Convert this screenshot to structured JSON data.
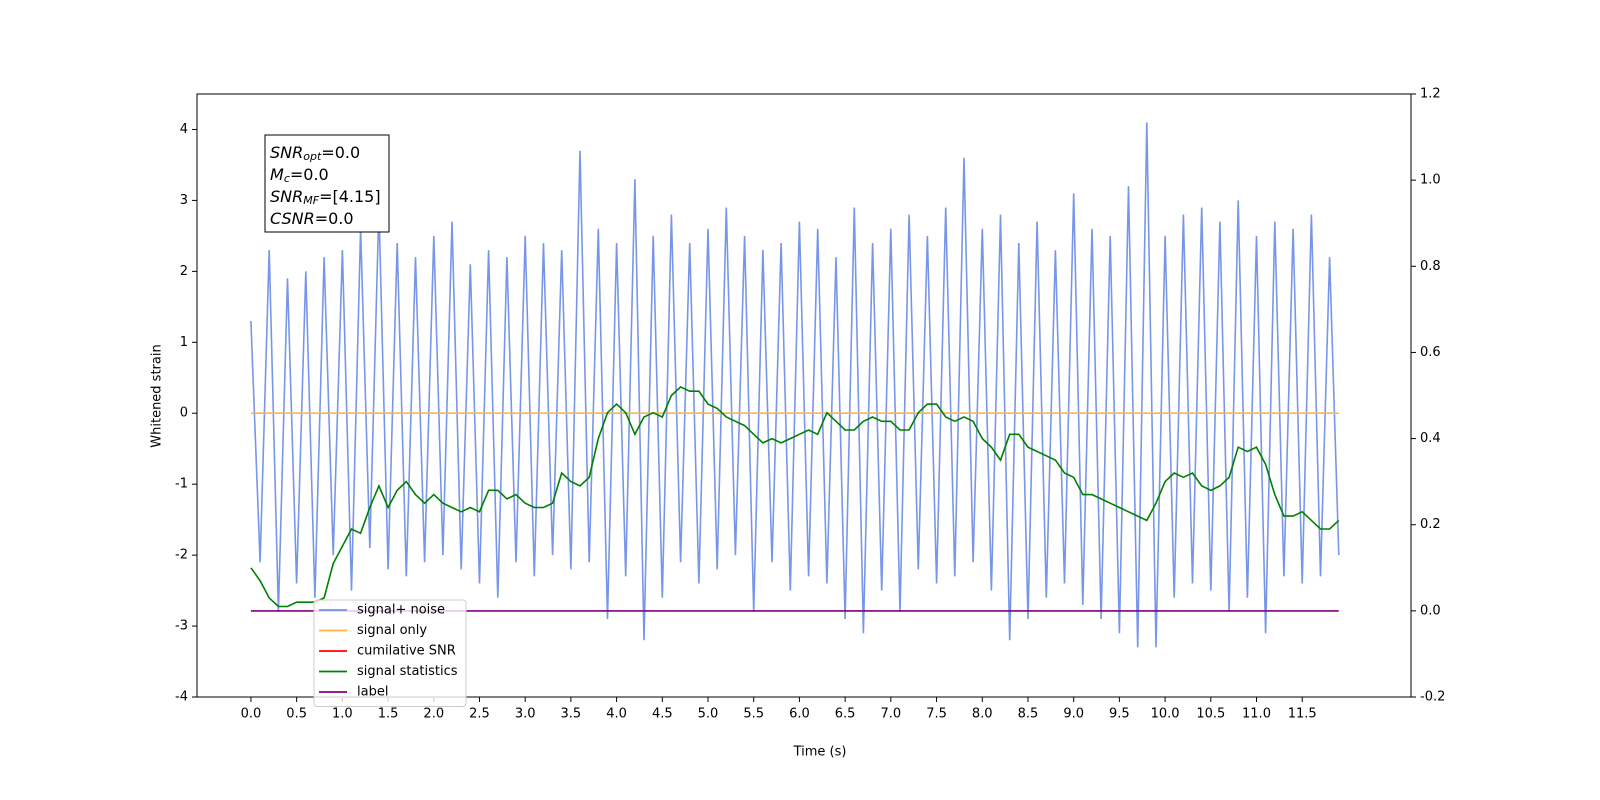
{
  "chart_data": {
    "type": "line",
    "xlabel": "Time (s)",
    "ylabel": "Whitened strain",
    "annotation": [
      {
        "text": "SNR",
        "sub": "opt",
        "rest": "=0.0"
      },
      {
        "text": "M",
        "sub": "c",
        "rest": "=0.0"
      },
      {
        "text": "SNR",
        "sub": "MF",
        "rest": "=[4.15]"
      },
      {
        "text": "CSNR",
        "rest": "=0.0"
      }
    ],
    "x": [
      0,
      0.1,
      0.2,
      0.3,
      0.4,
      0.5,
      0.6,
      0.7,
      0.8,
      0.9,
      1,
      1.1,
      1.2,
      1.3,
      1.4,
      1.5,
      1.6,
      1.7,
      1.8,
      1.9,
      2,
      2.1,
      2.2,
      2.3,
      2.4,
      2.5,
      2.6,
      2.7,
      2.8,
      2.9,
      3,
      3.1,
      3.2,
      3.3,
      3.4,
      3.5,
      3.6,
      3.7,
      3.8,
      3.9,
      4,
      4.1,
      4.2,
      4.3,
      4.4,
      4.5,
      4.6,
      4.7,
      4.8,
      4.9,
      5,
      5.1,
      5.2,
      5.3,
      5.4,
      5.5,
      5.6,
      5.7,
      5.8,
      5.9,
      6,
      6.1,
      6.2,
      6.3,
      6.4,
      6.5,
      6.6,
      6.7,
      6.8,
      6.9,
      7,
      7.1,
      7.2,
      7.3,
      7.4,
      7.5,
      7.6,
      7.7,
      7.8,
      7.9,
      8,
      8.1,
      8.2,
      8.3,
      8.4,
      8.5,
      8.6,
      8.7,
      8.8,
      8.9,
      9,
      9.1,
      9.2,
      9.3,
      9.4,
      9.5,
      9.6,
      9.7,
      9.8,
      9.9,
      10,
      10.1,
      10.2,
      10.3,
      10.4,
      10.5,
      10.6,
      10.7,
      10.8,
      10.9,
      11,
      11.1,
      11.2,
      11.3,
      11.4,
      11.5,
      11.6,
      11.7,
      11.8,
      11.9
    ],
    "series": [
      {
        "name": "signal+ noise",
        "color": "#7190e6",
        "values": [
          1.3,
          -2.1,
          2.3,
          -2.8,
          1.9,
          -2.4,
          2.0,
          -2.6,
          2.2,
          -2.0,
          2.3,
          -2.5,
          2.6,
          -1.9,
          2.9,
          -2.2,
          2.4,
          -2.3,
          2.2,
          -2.1,
          2.5,
          -2.0,
          2.7,
          -2.2,
          2.1,
          -2.4,
          2.3,
          -2.6,
          2.2,
          -2.1,
          2.5,
          -2.3,
          2.4,
          -2.0,
          2.3,
          -2.2,
          3.7,
          -2.1,
          2.6,
          -2.9,
          2.4,
          -2.3,
          3.3,
          -3.2,
          2.5,
          -2.6,
          2.8,
          -2.1,
          2.4,
          -2.4,
          2.6,
          -2.2,
          2.9,
          -2.0,
          2.5,
          -2.8,
          2.3,
          -2.1,
          2.4,
          -2.5,
          2.7,
          -2.3,
          2.6,
          -2.4,
          2.2,
          -2.9,
          2.9,
          -3.1,
          2.4,
          -2.5,
          2.6,
          -2.8,
          2.8,
          -2.2,
          2.5,
          -2.4,
          2.9,
          -2.3,
          3.6,
          -2.1,
          2.6,
          -2.5,
          2.8,
          -3.2,
          2.4,
          -2.9,
          2.7,
          -2.6,
          2.3,
          -2.4,
          3.1,
          -2.7,
          2.6,
          -2.9,
          2.5,
          -3.1,
          3.2,
          -3.3,
          4.1,
          -3.3,
          2.5,
          -2.6,
          2.8,
          -2.4,
          2.9,
          -2.5,
          2.7,
          -2.8,
          3.0,
          -2.6,
          2.5,
          -3.1,
          2.7,
          -2.3,
          2.6,
          -2.4,
          2.8,
          -2.3,
          2.2,
          -2.0
        ]
      },
      {
        "name": "signal only",
        "color": "#ffb347",
        "values": [
          0,
          0,
          0,
          0,
          0,
          0,
          0,
          0,
          0,
          0,
          0,
          0,
          0,
          0,
          0,
          0,
          0,
          0,
          0,
          0,
          0,
          0,
          0,
          0,
          0,
          0,
          0,
          0,
          0,
          0,
          0,
          0,
          0,
          0,
          0,
          0,
          0,
          0,
          0,
          0,
          0,
          0,
          0,
          0,
          0,
          0,
          0,
          0,
          0,
          0,
          0,
          0,
          0,
          0,
          0,
          0,
          0,
          0,
          0,
          0,
          0,
          0,
          0,
          0,
          0,
          0,
          0,
          0,
          0,
          0,
          0,
          0,
          0,
          0,
          0,
          0,
          0,
          0,
          0,
          0,
          0,
          0,
          0,
          0,
          0,
          0,
          0,
          0,
          0,
          0,
          0,
          0,
          0,
          0,
          0,
          0,
          0,
          0,
          0,
          0,
          0,
          0,
          0,
          0,
          0,
          0,
          0,
          0,
          0,
          0,
          0,
          0,
          0,
          0,
          0,
          0,
          0,
          0,
          0,
          0
        ]
      },
      {
        "name": "cumilative SNR",
        "color": "#ff0000"
      },
      {
        "name": "signal statistics",
        "color": "#008000",
        "axis": "y2",
        "values": [
          0.1,
          0.07,
          0.03,
          0.01,
          0.01,
          0.02,
          0.02,
          0.02,
          0.03,
          0.11,
          0.15,
          0.19,
          0.18,
          0.24,
          0.29,
          0.24,
          0.28,
          0.3,
          0.27,
          0.25,
          0.27,
          0.25,
          0.24,
          0.23,
          0.24,
          0.23,
          0.28,
          0.28,
          0.26,
          0.27,
          0.25,
          0.24,
          0.24,
          0.25,
          0.32,
          0.3,
          0.29,
          0.31,
          0.4,
          0.46,
          0.48,
          0.46,
          0.41,
          0.45,
          0.46,
          0.45,
          0.5,
          0.52,
          0.51,
          0.51,
          0.48,
          0.47,
          0.45,
          0.44,
          0.43,
          0.41,
          0.39,
          0.4,
          0.39,
          0.4,
          0.41,
          0.42,
          0.41,
          0.46,
          0.44,
          0.42,
          0.42,
          0.44,
          0.45,
          0.44,
          0.44,
          0.42,
          0.42,
          0.46,
          0.48,
          0.48,
          0.45,
          0.44,
          0.45,
          0.44,
          0.4,
          0.38,
          0.35,
          0.41,
          0.41,
          0.38,
          0.37,
          0.36,
          0.35,
          0.32,
          0.31,
          0.27,
          0.27,
          0.26,
          0.25,
          0.24,
          0.23,
          0.22,
          0.21,
          0.25,
          0.3,
          0.32,
          0.31,
          0.32,
          0.29,
          0.28,
          0.29,
          0.31,
          0.38,
          0.37,
          0.38,
          0.34,
          0.27,
          0.22,
          0.22,
          0.23,
          0.21,
          0.19,
          0.19,
          0.21
        ]
      },
      {
        "name": "label",
        "color": "#800080",
        "axis": "y2",
        "values": [
          0,
          0,
          0,
          0,
          0,
          0,
          0,
          0,
          0,
          0,
          0,
          0,
          0,
          0,
          0,
          0,
          0,
          0,
          0,
          0,
          0,
          0,
          0,
          0,
          0,
          0,
          0,
          0,
          0,
          0,
          0,
          0,
          0,
          0,
          0,
          0,
          0,
          0,
          0,
          0,
          0,
          0,
          0,
          0,
          0,
          0,
          0,
          0,
          0,
          0,
          0,
          0,
          0,
          0,
          0,
          0,
          0,
          0,
          0,
          0,
          0,
          0,
          0,
          0,
          0,
          0,
          0,
          0,
          0,
          0,
          0,
          0,
          0,
          0,
          0,
          0,
          0,
          0,
          0,
          0,
          0,
          0,
          0,
          0,
          0,
          0,
          0,
          0,
          0,
          0,
          0,
          0,
          0,
          0,
          0,
          0,
          0,
          0,
          0,
          0,
          0,
          0,
          0,
          0,
          0,
          0,
          0,
          0,
          0,
          0,
          0,
          0,
          0,
          0,
          0,
          0,
          0,
          0,
          0,
          0
        ]
      }
    ],
    "xlim": [
      -0.59,
      12.69
    ],
    "xticks": [
      {
        "value": 0,
        "label": "0.0"
      },
      0.5,
      {
        "value": 1,
        "label": "1.0"
      },
      1.5,
      {
        "value": 2,
        "label": "2.0"
      },
      2.5,
      {
        "value": 3,
        "label": "3.0"
      },
      3.5,
      {
        "value": 4,
        "label": "4.0"
      },
      4.5,
      {
        "value": 5,
        "label": "5.0"
      },
      5.5,
      {
        "value": 6,
        "label": "6.0"
      },
      6.5,
      {
        "value": 7,
        "label": "7.0"
      },
      7.5,
      {
        "value": 8,
        "label": "8.0"
      },
      8.5,
      {
        "value": 9,
        "label": "9.0"
      },
      9.5,
      {
        "value": 10,
        "label": "10.0"
      },
      10.5,
      {
        "value": 11,
        "label": "11.0"
      },
      11.5
    ],
    "ylim": [
      -4,
      4.5
    ],
    "yticks": [
      -4,
      -3,
      -2,
      -1,
      0,
      1,
      2,
      3,
      4
    ],
    "y2lim": [
      -0.2,
      1.2
    ],
    "y2ticks": [
      -0.2,
      {
        "value": 0,
        "label": "0.0"
      },
      0.2,
      0.4,
      0.6,
      0.8,
      {
        "value": 1,
        "label": "1.0"
      },
      1.2
    ],
    "legend": "lower left"
  }
}
